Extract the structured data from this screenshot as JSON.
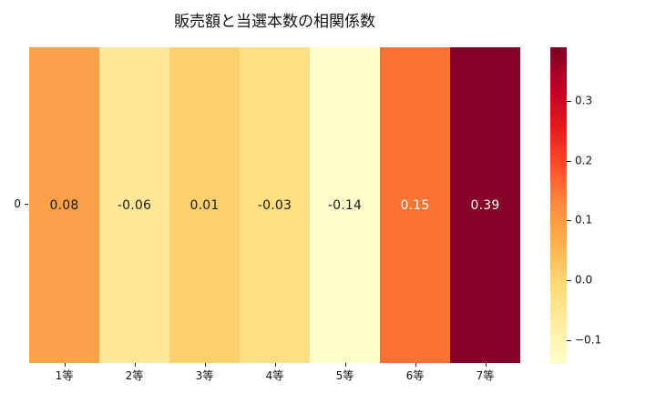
{
  "figure": {
    "background": "#ffffff"
  },
  "chart_data": {
    "type": "heatmap",
    "title": "販売額と当選本数の相関係数",
    "x_categories": [
      "1等",
      "2等",
      "3等",
      "4等",
      "5等",
      "6等",
      "7等"
    ],
    "y_categories": [
      "0"
    ],
    "values": [
      [
        0.08,
        -0.06,
        0.01,
        -0.03,
        -0.14,
        0.15,
        0.39
      ]
    ],
    "cell_labels": [
      [
        "0.08",
        "-0.06",
        "0.01",
        "-0.03",
        "-0.14",
        "0.15",
        "0.39"
      ]
    ],
    "cell_colors": [
      [
        "#fba248",
        "#ffe897",
        "#fdd06f",
        "#fedf84",
        "#ffffcb",
        "#fb7434",
        "#840027"
      ]
    ],
    "cell_text_colors": [
      [
        "#1a1a1a",
        "#1a1a1a",
        "#1a1a1a",
        "#1a1a1a",
        "#1a1a1a",
        "#ffffff",
        "#ffffff"
      ]
    ],
    "colormap": "YlOrRd",
    "vmin": -0.14,
    "vmax": 0.39,
    "grid": false,
    "colorbar": {
      "position": "right",
      "tick_values": [
        0.3,
        0.2,
        0.1,
        0.0,
        -0.1
      ],
      "tick_labels": [
        "0.3",
        "0.2",
        "0.1",
        "0.0",
        "−0.1"
      ],
      "gradient_stops": [
        {
          "pos": 0,
          "color": "#800026"
        },
        {
          "pos": 12.5,
          "color": "#bd0026"
        },
        {
          "pos": 25,
          "color": "#e31a1c"
        },
        {
          "pos": 37.5,
          "color": "#fc4e2a"
        },
        {
          "pos": 50,
          "color": "#fd8d3c"
        },
        {
          "pos": 62.5,
          "color": "#feb24c"
        },
        {
          "pos": 75,
          "color": "#fed976"
        },
        {
          "pos": 87.5,
          "color": "#ffeda0"
        },
        {
          "pos": 100,
          "color": "#ffffcc"
        }
      ]
    }
  }
}
